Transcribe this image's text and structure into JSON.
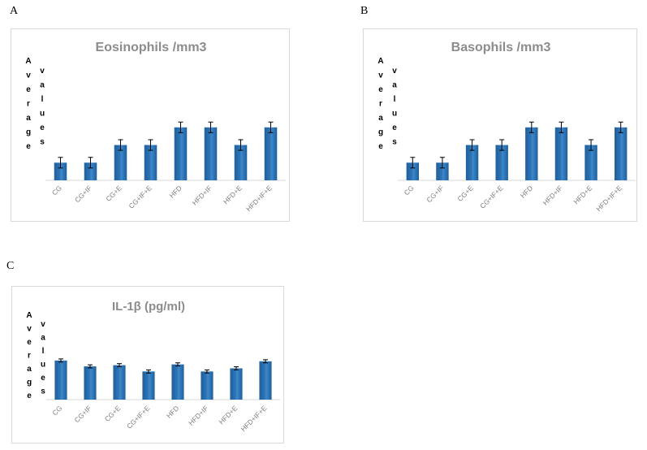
{
  "panels": [
    {
      "letter": "A"
    },
    {
      "letter": "B"
    },
    {
      "letter": "C"
    }
  ],
  "chart_data": [
    {
      "type": "bar",
      "title": "Eosinophils /mm3",
      "ylabel": "Average values",
      "categories": [
        "CG",
        "CG+IF",
        "CG+E",
        "CG+IF+E",
        "HFD",
        "HFD+IF",
        "HFD+E",
        "HFD+IF+E"
      ],
      "values": [
        1,
        1,
        2,
        2,
        3,
        3,
        2,
        3
      ],
      "errors": [
        0.3,
        0.3,
        0.3,
        0.3,
        0.3,
        0.3,
        0.3,
        0.3
      ],
      "ylim": [
        0,
        4.6
      ],
      "grid": false,
      "bar_color": "#2e75b6"
    },
    {
      "type": "bar",
      "title": "Basophils /mm3",
      "ylabel": "Average values",
      "categories": [
        "CG",
        "CG+IF",
        "CG+E",
        "CG+IF+E",
        "HFD",
        "HFD+IF",
        "HFD+E",
        "HFD+IF+E"
      ],
      "values": [
        1,
        1,
        2,
        2,
        3,
        3,
        2,
        3
      ],
      "errors": [
        0.3,
        0.3,
        0.3,
        0.3,
        0.3,
        0.3,
        0.3,
        0.3
      ],
      "ylim": [
        0,
        4.6
      ],
      "grid": false,
      "bar_color": "#2e75b6"
    },
    {
      "type": "bar",
      "title": "IL-1β (pg/ml)",
      "ylabel": "Average values",
      "categories": [
        "CG",
        "CG+IF",
        "CG+E",
        "CG+IF+E",
        "HFD",
        "HFD+IF",
        "HFD+E",
        "HFD+IF+E"
      ],
      "values": [
        1.0,
        0.85,
        0.88,
        0.72,
        0.9,
        0.72,
        0.8,
        0.98
      ],
      "errors": [
        0.04,
        0.04,
        0.04,
        0.04,
        0.04,
        0.04,
        0.04,
        0.04
      ],
      "ylim": [
        0,
        2.2
      ],
      "grid": false,
      "bar_color": "#2e75b6"
    }
  ]
}
